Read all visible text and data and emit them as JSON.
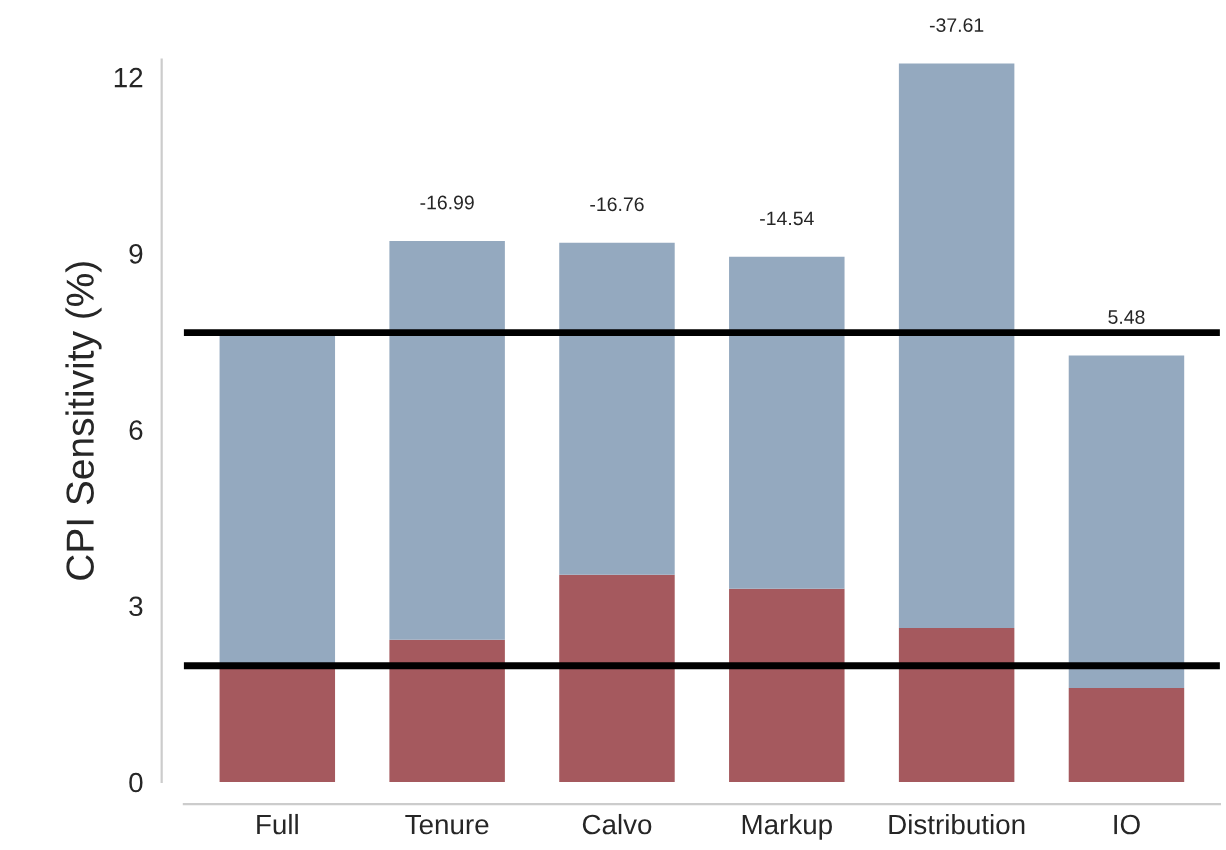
{
  "chart_data": {
    "type": "bar",
    "stacked": true,
    "ylabel": "CPI Sensitivity (%)",
    "categories": [
      "Full",
      "Tenure",
      "Calvo",
      "Markup",
      "Distribution",
      "IO"
    ],
    "series": [
      {
        "color": "#a5595e",
        "values": [
          1.95,
          2.42,
          3.53,
          3.29,
          2.62,
          1.6
        ]
      },
      {
        "color": "#94a9bf",
        "values": [
          5.7,
          6.79,
          5.65,
          5.65,
          9.61,
          5.66
        ]
      }
    ],
    "ylim": [
      0,
      12.3
    ],
    "yticks": [
      0,
      3,
      6,
      9,
      12
    ],
    "ref_lines": [
      {
        "axis": "y",
        "value": 7.65,
        "color": "#000000"
      },
      {
        "axis": "y",
        "value": 1.98,
        "color": "#000000"
      }
    ],
    "annotations": [
      {
        "text": "-16.99",
        "x": "Tenure",
        "y": 9.21
      },
      {
        "text": "-16.76",
        "x": "Calvo",
        "y": 9.18
      },
      {
        "text": "-14.54",
        "x": "Markup",
        "y": 8.94
      },
      {
        "text": "-37.61",
        "x": "Distribution",
        "y": 12.23
      },
      {
        "text": "5.48",
        "x": "IO",
        "y": 7.26
      }
    ],
    "grid": false,
    "legend": false
  }
}
